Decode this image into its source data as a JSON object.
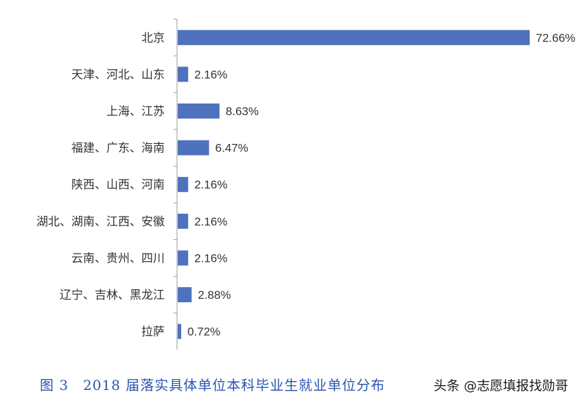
{
  "chart_data": {
    "type": "bar",
    "orientation": "horizontal",
    "categories": [
      "北京",
      "天津、河北、山东",
      "上海、江苏",
      "福建、广东、海南",
      "陕西、山西、河南",
      "湖北、湖南、江西、安徽",
      "云南、贵州、四川",
      "辽宁、吉林、黑龙江",
      "拉萨"
    ],
    "values": [
      72.66,
      2.16,
      8.63,
      6.47,
      2.16,
      2.16,
      2.16,
      2.88,
      0.72
    ],
    "value_labels": [
      "72.66%",
      "2.16%",
      "8.63%",
      "6.47%",
      "2.16%",
      "2.16%",
      "2.16%",
      "2.88%",
      "0.72%"
    ],
    "xlim": [
      0,
      72.66
    ],
    "grid": false,
    "bar_color": "#4f72be"
  },
  "caption": "图 3　2018 届落实具体单位本科毕业生就业单位分布",
  "watermark": "头条 @志愿填报找勋哥"
}
